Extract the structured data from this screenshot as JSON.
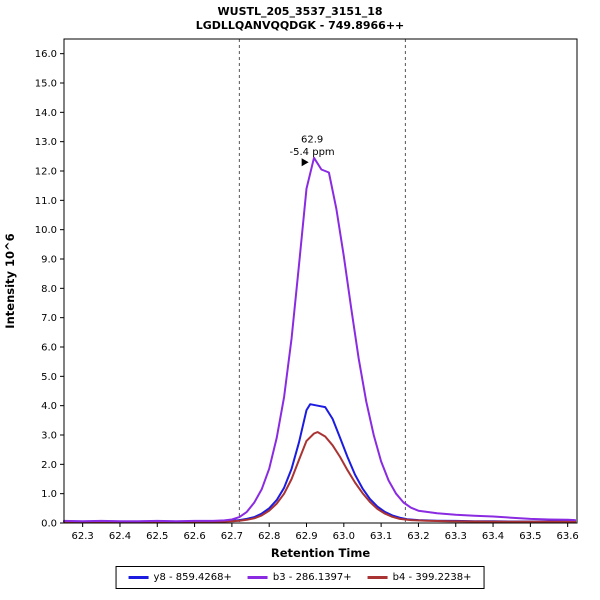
{
  "chart_data": {
    "type": "line",
    "title": "WUSTL_205_3537_3151_18",
    "subtitle": "LGDLLQANVQQDGK - 749.8966++",
    "xlabel": "Retention Time",
    "ylabel": "Intensity 10^6",
    "xlim": [
      62.25,
      63.625
    ],
    "ylim": [
      0,
      16.5
    ],
    "x_ticks": [
      62.3,
      62.4,
      62.5,
      62.6,
      62.7,
      62.8,
      62.9,
      63.0,
      63.1,
      63.2,
      63.3,
      63.4,
      63.5,
      63.6
    ],
    "y_ticks": [
      0,
      1,
      2,
      3,
      4,
      5,
      6,
      7,
      8,
      9,
      10,
      11,
      12,
      13,
      14,
      15,
      16
    ],
    "integration_boundaries": [
      62.72,
      63.165
    ],
    "colors": {
      "boundary": "#555555",
      "axis": "#000000",
      "background": "#ffffff"
    },
    "annotation": {
      "lines": [
        "62.9",
        "-5.4 ppm"
      ],
      "x": 62.915,
      "y_lines": [
        12.98,
        12.55
      ],
      "color": "#8a2be2"
    },
    "peak_arrow": {
      "x": 62.887,
      "y": 12.3,
      "color": "#000000"
    },
    "series": [
      {
        "name": "y8 - 859.4268+",
        "color": "#1c1ce0",
        "points": [
          [
            62.25,
            0.06
          ],
          [
            62.3,
            0.05
          ],
          [
            62.35,
            0.06
          ],
          [
            62.4,
            0.05
          ],
          [
            62.45,
            0.05
          ],
          [
            62.5,
            0.06
          ],
          [
            62.55,
            0.05
          ],
          [
            62.6,
            0.05
          ],
          [
            62.65,
            0.06
          ],
          [
            62.68,
            0.06
          ],
          [
            62.7,
            0.08
          ],
          [
            62.72,
            0.1
          ],
          [
            62.74,
            0.14
          ],
          [
            62.76,
            0.2
          ],
          [
            62.78,
            0.32
          ],
          [
            62.8,
            0.5
          ],
          [
            62.82,
            0.78
          ],
          [
            62.84,
            1.2
          ],
          [
            62.86,
            1.85
          ],
          [
            62.88,
            2.75
          ],
          [
            62.9,
            3.85
          ],
          [
            62.91,
            4.05
          ],
          [
            62.93,
            4.0
          ],
          [
            62.95,
            3.95
          ],
          [
            62.97,
            3.55
          ],
          [
            62.99,
            2.9
          ],
          [
            63.01,
            2.25
          ],
          [
            63.03,
            1.65
          ],
          [
            63.05,
            1.18
          ],
          [
            63.07,
            0.82
          ],
          [
            63.09,
            0.56
          ],
          [
            63.11,
            0.38
          ],
          [
            63.13,
            0.26
          ],
          [
            63.15,
            0.18
          ],
          [
            63.17,
            0.13
          ],
          [
            63.2,
            0.1
          ],
          [
            63.25,
            0.08
          ],
          [
            63.3,
            0.07
          ],
          [
            63.35,
            0.06
          ],
          [
            63.4,
            0.06
          ],
          [
            63.45,
            0.05
          ],
          [
            63.5,
            0.05
          ],
          [
            63.55,
            0.05
          ],
          [
            63.6,
            0.05
          ],
          [
            63.62,
            0.05
          ]
        ]
      },
      {
        "name": "b3 - 286.1397+",
        "color": "#8a2be2",
        "points": [
          [
            62.25,
            0.07
          ],
          [
            62.3,
            0.06
          ],
          [
            62.35,
            0.07
          ],
          [
            62.4,
            0.06
          ],
          [
            62.45,
            0.06
          ],
          [
            62.5,
            0.07
          ],
          [
            62.55,
            0.06
          ],
          [
            62.6,
            0.07
          ],
          [
            62.65,
            0.07
          ],
          [
            62.68,
            0.09
          ],
          [
            62.7,
            0.12
          ],
          [
            62.72,
            0.2
          ],
          [
            62.74,
            0.38
          ],
          [
            62.76,
            0.7
          ],
          [
            62.78,
            1.15
          ],
          [
            62.8,
            1.85
          ],
          [
            62.82,
            2.9
          ],
          [
            62.84,
            4.3
          ],
          [
            62.86,
            6.3
          ],
          [
            62.88,
            8.8
          ],
          [
            62.9,
            11.4
          ],
          [
            62.92,
            12.45
          ],
          [
            62.94,
            12.05
          ],
          [
            62.96,
            11.95
          ],
          [
            62.98,
            10.7
          ],
          [
            63.0,
            9.1
          ],
          [
            63.02,
            7.3
          ],
          [
            63.04,
            5.6
          ],
          [
            63.06,
            4.15
          ],
          [
            63.08,
            3.0
          ],
          [
            63.1,
            2.1
          ],
          [
            63.12,
            1.45
          ],
          [
            63.14,
            1.0
          ],
          [
            63.16,
            0.7
          ],
          [
            63.18,
            0.52
          ],
          [
            63.2,
            0.42
          ],
          [
            63.25,
            0.33
          ],
          [
            63.3,
            0.28
          ],
          [
            63.35,
            0.25
          ],
          [
            63.4,
            0.22
          ],
          [
            63.45,
            0.18
          ],
          [
            63.5,
            0.14
          ],
          [
            63.55,
            0.12
          ],
          [
            63.6,
            0.11
          ],
          [
            63.62,
            0.1
          ]
        ]
      },
      {
        "name": "b4 - 399.2238+",
        "color": "#aa3333",
        "points": [
          [
            62.25,
            0.05
          ],
          [
            62.3,
            0.04
          ],
          [
            62.35,
            0.05
          ],
          [
            62.4,
            0.04
          ],
          [
            62.45,
            0.05
          ],
          [
            62.5,
            0.04
          ],
          [
            62.55,
            0.05
          ],
          [
            62.6,
            0.04
          ],
          [
            62.65,
            0.05
          ],
          [
            62.68,
            0.05
          ],
          [
            62.7,
            0.06
          ],
          [
            62.72,
            0.08
          ],
          [
            62.74,
            0.11
          ],
          [
            62.76,
            0.16
          ],
          [
            62.78,
            0.26
          ],
          [
            62.8,
            0.42
          ],
          [
            62.82,
            0.66
          ],
          [
            62.84,
            1.0
          ],
          [
            62.86,
            1.5
          ],
          [
            62.88,
            2.15
          ],
          [
            62.9,
            2.8
          ],
          [
            62.92,
            3.05
          ],
          [
            62.93,
            3.1
          ],
          [
            62.95,
            2.95
          ],
          [
            62.97,
            2.65
          ],
          [
            62.99,
            2.25
          ],
          [
            63.01,
            1.8
          ],
          [
            63.03,
            1.38
          ],
          [
            63.05,
            1.02
          ],
          [
            63.07,
            0.72
          ],
          [
            63.09,
            0.48
          ],
          [
            63.11,
            0.32
          ],
          [
            63.13,
            0.21
          ],
          [
            63.15,
            0.14
          ],
          [
            63.18,
            0.1
          ],
          [
            63.22,
            0.08
          ],
          [
            63.28,
            0.06
          ],
          [
            63.35,
            0.05
          ],
          [
            63.45,
            0.04
          ],
          [
            63.55,
            0.04
          ],
          [
            63.62,
            0.04
          ]
        ]
      }
    ],
    "draw_order": [
      0,
      2,
      1
    ]
  }
}
